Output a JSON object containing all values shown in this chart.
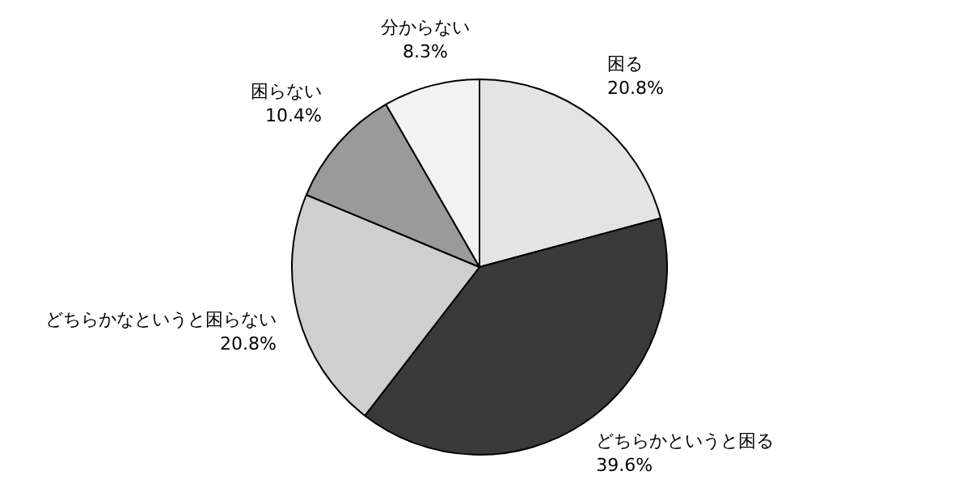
{
  "chart_data": {
    "type": "pie",
    "categories": [
      "困る",
      "どちらかというと困る",
      "どちらかなというと困らない",
      "困らない",
      "分からない"
    ],
    "values": [
      20.8,
      39.6,
      20.8,
      10.4,
      8.3
    ],
    "colors": [
      "#e4e4e4",
      "#3a3a3a",
      "#cfcfcf",
      "#9a9a9a",
      "#f2f2f2"
    ],
    "value_labels": [
      "20.8%",
      "39.6%",
      "20.8%",
      "10.4%",
      "8.3%"
    ],
    "legend": false
  }
}
